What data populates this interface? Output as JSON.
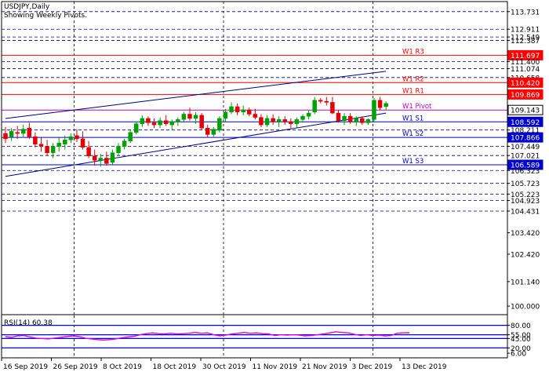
{
  "chart_data": [
    {
      "type": "candlestick",
      "symbol_title": "USDJPY,Daily",
      "subtitle": "Showing Weekly Pivots.",
      "ylim": [
        99.6,
        114.2
      ],
      "x_labels": [
        "16 Sep 2019",
        "26 Sep 2019",
        "8 Oct 2019",
        "18 Oct 2019",
        "30 Oct 2019",
        "11 Nov 2019",
        "21 Nov 2019",
        "3 Dec 2019",
        "13 Dec 2019"
      ],
      "vertical_grid_after_label_index": [
        1,
        4,
        7
      ],
      "y_axis_ticks": [
        {
          "label": "113.731",
          "value": 113.731,
          "style": "plain"
        },
        {
          "label": "112.911",
          "value": 112.911,
          "style": "plain"
        },
        {
          "label": "112.549",
          "value": 112.549,
          "style": "plain"
        },
        {
          "label": "112.387",
          "value": 112.387,
          "style": "plain"
        },
        {
          "label": "111.697",
          "value": 111.697,
          "style": "red"
        },
        {
          "label": "111.400",
          "value": 111.4,
          "style": "plain"
        },
        {
          "label": "111.074",
          "value": 111.074,
          "style": "plain"
        },
        {
          "label": "110.658",
          "value": 110.658,
          "style": "plain"
        },
        {
          "label": "110.420",
          "value": 110.42,
          "style": "red"
        },
        {
          "label": "109.869",
          "value": 109.869,
          "style": "red"
        },
        {
          "label": "109.143",
          "value": 109.143,
          "style": "current"
        },
        {
          "label": "108.592",
          "value": 108.592,
          "style": "blue"
        },
        {
          "label": "108.211",
          "value": 108.211,
          "style": "plain"
        },
        {
          "label": "107.866",
          "value": 107.866,
          "style": "blue"
        },
        {
          "label": "107.449",
          "value": 107.449,
          "style": "plain"
        },
        {
          "label": "107.021",
          "value": 107.021,
          "style": "plain"
        },
        {
          "label": "106.589",
          "value": 106.589,
          "style": "blue"
        },
        {
          "label": "106.323",
          "value": 106.323,
          "style": "plain"
        },
        {
          "label": "105.723",
          "value": 105.723,
          "style": "plain"
        },
        {
          "label": "105.223",
          "value": 105.223,
          "style": "plain"
        },
        {
          "label": "104.923",
          "value": 104.923,
          "style": "plain"
        },
        {
          "label": "104.431",
          "value": 104.431,
          "style": "plain"
        },
        {
          "label": "103.420",
          "value": 103.42,
          "style": "plain"
        },
        {
          "label": "102.420",
          "value": 102.42,
          "style": "plain"
        },
        {
          "label": "101.140",
          "value": 101.14,
          "style": "plain"
        },
        {
          "label": "100.000",
          "value": 100.0,
          "style": "plain"
        }
      ],
      "dashed_levels": [
        113.731,
        112.911,
        112.549,
        112.387,
        111.4,
        111.074,
        110.658,
        108.211,
        107.449,
        107.021,
        106.323,
        105.723,
        105.223,
        104.923,
        104.431
      ],
      "pivots": [
        {
          "name": "W1 R3",
          "value": 111.697,
          "color": "#ff0000"
        },
        {
          "name": "W1 R2",
          "value": 110.42,
          "color": "#ff0000"
        },
        {
          "name": "W1 R1",
          "value": 109.869,
          "color": "#ff0000"
        },
        {
          "name": "W1 Pivot",
          "value": 109.143,
          "color": "#c000c0"
        },
        {
          "name": "W1 S1",
          "value": 108.592,
          "color": "#0000cc"
        },
        {
          "name": "W1 S2",
          "value": 107.866,
          "color": "#0000cc"
        },
        {
          "name": "W1 S3",
          "value": 106.589,
          "color": "#0000cc"
        }
      ],
      "trend_channel": {
        "upper": [
          {
            "bar": 0,
            "price": 108.75
          },
          {
            "bar": 64,
            "price": 110.95
          }
        ],
        "lower": [
          {
            "bar": 0,
            "price": 106.05
          },
          {
            "bar": 64,
            "price": 109.0
          }
        ]
      },
      "candles": [
        {
          "o": 108.05,
          "h": 108.35,
          "l": 107.6,
          "c": 107.8
        },
        {
          "o": 107.9,
          "h": 108.3,
          "l": 107.7,
          "c": 108.15
        },
        {
          "o": 108.1,
          "h": 108.4,
          "l": 107.8,
          "c": 108.05
        },
        {
          "o": 108.05,
          "h": 108.45,
          "l": 107.85,
          "c": 108.25
        },
        {
          "o": 108.3,
          "h": 108.55,
          "l": 107.8,
          "c": 107.9
        },
        {
          "o": 107.9,
          "h": 108.1,
          "l": 107.4,
          "c": 107.55
        },
        {
          "o": 107.55,
          "h": 107.85,
          "l": 107.2,
          "c": 107.45
        },
        {
          "o": 107.45,
          "h": 107.75,
          "l": 107.0,
          "c": 107.15
        },
        {
          "o": 107.15,
          "h": 107.6,
          "l": 106.9,
          "c": 107.45
        },
        {
          "o": 107.45,
          "h": 107.85,
          "l": 107.2,
          "c": 107.6
        },
        {
          "o": 107.55,
          "h": 107.95,
          "l": 107.3,
          "c": 107.75
        },
        {
          "o": 107.75,
          "h": 108.05,
          "l": 107.6,
          "c": 107.9
        },
        {
          "o": 107.95,
          "h": 108.25,
          "l": 107.65,
          "c": 107.8
        },
        {
          "o": 107.8,
          "h": 108.15,
          "l": 107.3,
          "c": 107.4
        },
        {
          "o": 107.4,
          "h": 107.7,
          "l": 106.9,
          "c": 107.0
        },
        {
          "o": 107.0,
          "h": 107.3,
          "l": 106.55,
          "c": 106.8
        },
        {
          "o": 106.8,
          "h": 107.1,
          "l": 106.5,
          "c": 106.9
        },
        {
          "o": 106.9,
          "h": 107.2,
          "l": 106.55,
          "c": 106.65
        },
        {
          "o": 106.7,
          "h": 107.3,
          "l": 106.6,
          "c": 107.15
        },
        {
          "o": 107.15,
          "h": 107.6,
          "l": 107.0,
          "c": 107.45
        },
        {
          "o": 107.45,
          "h": 107.8,
          "l": 107.3,
          "c": 107.7
        },
        {
          "o": 107.7,
          "h": 108.2,
          "l": 107.6,
          "c": 108.1
        },
        {
          "o": 108.1,
          "h": 108.6,
          "l": 108.0,
          "c": 108.5
        },
        {
          "o": 108.5,
          "h": 108.9,
          "l": 108.35,
          "c": 108.75
        },
        {
          "o": 108.75,
          "h": 108.85,
          "l": 108.4,
          "c": 108.55
        },
        {
          "o": 108.55,
          "h": 108.75,
          "l": 108.3,
          "c": 108.45
        },
        {
          "o": 108.45,
          "h": 108.8,
          "l": 108.3,
          "c": 108.65
        },
        {
          "o": 108.65,
          "h": 108.9,
          "l": 108.4,
          "c": 108.5
        },
        {
          "o": 108.45,
          "h": 108.7,
          "l": 108.2,
          "c": 108.6
        },
        {
          "o": 108.6,
          "h": 108.8,
          "l": 108.4,
          "c": 108.7
        },
        {
          "o": 108.7,
          "h": 109.05,
          "l": 108.6,
          "c": 108.95
        },
        {
          "o": 108.95,
          "h": 109.25,
          "l": 108.65,
          "c": 108.75
        },
        {
          "o": 108.75,
          "h": 109.05,
          "l": 108.5,
          "c": 108.9
        },
        {
          "o": 108.9,
          "h": 109.0,
          "l": 108.2,
          "c": 108.3
        },
        {
          "o": 108.3,
          "h": 108.45,
          "l": 107.85,
          "c": 108.0
        },
        {
          "o": 108.0,
          "h": 108.35,
          "l": 107.9,
          "c": 108.25
        },
        {
          "o": 108.2,
          "h": 108.85,
          "l": 108.1,
          "c": 108.75
        },
        {
          "o": 108.75,
          "h": 109.2,
          "l": 108.6,
          "c": 109.05
        },
        {
          "o": 109.05,
          "h": 109.5,
          "l": 108.95,
          "c": 109.3
        },
        {
          "o": 109.3,
          "h": 109.45,
          "l": 108.9,
          "c": 109.05
        },
        {
          "o": 109.05,
          "h": 109.35,
          "l": 108.9,
          "c": 109.15
        },
        {
          "o": 109.15,
          "h": 109.25,
          "l": 108.85,
          "c": 108.95
        },
        {
          "o": 108.95,
          "h": 109.2,
          "l": 108.7,
          "c": 108.8
        },
        {
          "o": 108.8,
          "h": 108.95,
          "l": 108.35,
          "c": 108.45
        },
        {
          "o": 108.45,
          "h": 108.9,
          "l": 108.35,
          "c": 108.75
        },
        {
          "o": 108.75,
          "h": 108.95,
          "l": 108.45,
          "c": 108.6
        },
        {
          "o": 108.6,
          "h": 108.85,
          "l": 108.35,
          "c": 108.7
        },
        {
          "o": 108.7,
          "h": 108.85,
          "l": 108.45,
          "c": 108.6
        },
        {
          "o": 108.6,
          "h": 108.75,
          "l": 108.3,
          "c": 108.5
        },
        {
          "o": 108.5,
          "h": 108.8,
          "l": 108.3,
          "c": 108.7
        },
        {
          "o": 108.7,
          "h": 108.95,
          "l": 108.55,
          "c": 108.85
        },
        {
          "o": 108.85,
          "h": 109.15,
          "l": 108.7,
          "c": 109.0
        },
        {
          "o": 109.05,
          "h": 109.75,
          "l": 108.95,
          "c": 109.6
        },
        {
          "o": 109.6,
          "h": 109.7,
          "l": 109.45,
          "c": 109.55
        },
        {
          "o": 109.55,
          "h": 109.75,
          "l": 109.35,
          "c": 109.5
        },
        {
          "o": 109.5,
          "h": 109.75,
          "l": 108.95,
          "c": 109.0
        },
        {
          "o": 109.0,
          "h": 109.15,
          "l": 108.55,
          "c": 108.65
        },
        {
          "o": 108.65,
          "h": 109.0,
          "l": 108.45,
          "c": 108.85
        },
        {
          "o": 108.85,
          "h": 109.0,
          "l": 108.5,
          "c": 108.6
        },
        {
          "o": 108.6,
          "h": 108.85,
          "l": 108.4,
          "c": 108.75
        },
        {
          "o": 108.75,
          "h": 108.85,
          "l": 108.45,
          "c": 108.55
        },
        {
          "o": 108.55,
          "h": 108.75,
          "l": 108.45,
          "c": 108.7
        },
        {
          "o": 108.7,
          "h": 109.7,
          "l": 108.6,
          "c": 109.6
        },
        {
          "o": 109.6,
          "h": 109.75,
          "l": 109.15,
          "c": 109.25
        },
        {
          "o": 109.3,
          "h": 109.55,
          "l": 109.15,
          "c": 109.45
        }
      ]
    },
    {
      "type": "line",
      "title": "RSI(14) 60.38",
      "ylim": [
        0,
        100
      ],
      "levels": [
        {
          "label": "80.00",
          "value": 80,
          "color": "#0000ff"
        },
        {
          "label": "55.00",
          "value": 55,
          "color": "#0000ff"
        },
        {
          "label": "45.00",
          "value": 45,
          "color": "#0000ff"
        },
        {
          "label": "20.00",
          "value": 20,
          "color": "#0000ff"
        }
      ],
      "axis_ticks": [
        {
          "label": "80.00",
          "value": 80
        },
        {
          "label": "55.00",
          "value": 55
        },
        {
          "label": "45.00",
          "value": 45
        },
        {
          "label": "20.00",
          "value": 20
        },
        {
          "label": "6.00",
          "value": 6
        }
      ],
      "series": [
        {
          "color": "#e000e0",
          "values": [
            50,
            48,
            52,
            53,
            49,
            46,
            45,
            44,
            46,
            48,
            50,
            52,
            50,
            46,
            44,
            42,
            41,
            42,
            44,
            47,
            49,
            51,
            55,
            58,
            60,
            58,
            57,
            59,
            57,
            58,
            59,
            61,
            59,
            60,
            55,
            52,
            54,
            57,
            59,
            61,
            59,
            60,
            58,
            57,
            53,
            55,
            54,
            55,
            54,
            52,
            53,
            55,
            57,
            60,
            63,
            61,
            60,
            56,
            53,
            55,
            53,
            54,
            52,
            53,
            59,
            60,
            60.38
          ]
        }
      ]
    }
  ]
}
